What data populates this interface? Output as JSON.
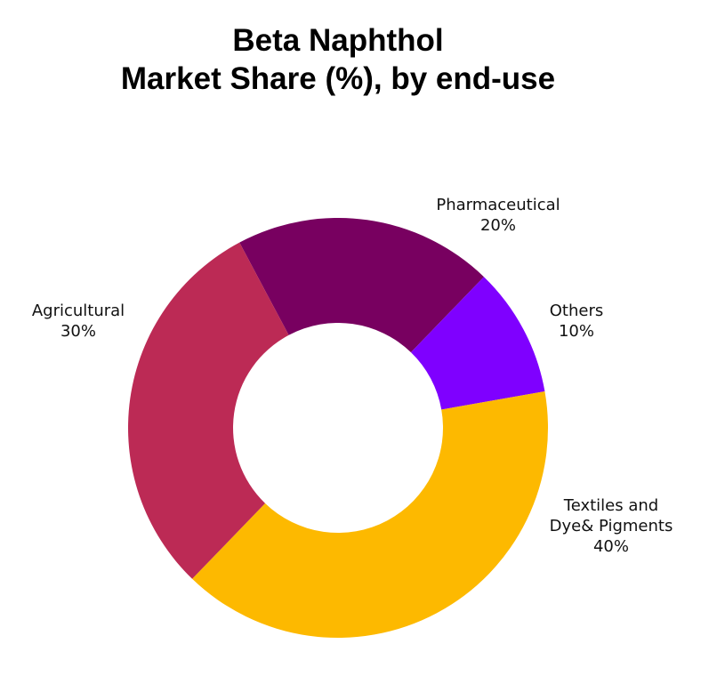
{
  "title": {
    "line1": "Beta Naphthol",
    "line2": "Market Share (%), by end-use"
  },
  "chart_data": {
    "type": "pie",
    "variant": "donut",
    "title": "Beta Naphthol Market Share (%), by end-use",
    "categories": [
      "Pharmaceutical",
      "Others",
      "Textiles and Dye& Pigments",
      "Agricultural"
    ],
    "values": [
      20,
      10,
      40,
      30
    ],
    "unit": "%",
    "colors": [
      "#780060",
      "#7F00FF",
      "#FDB900",
      "#BC2A55"
    ],
    "legend": "none (direct labels)"
  },
  "labels": {
    "pharmaceutical": {
      "name": "Pharmaceutical",
      "value": "20%"
    },
    "others": {
      "name": "Others",
      "value": "10%"
    },
    "textiles_line1": "Textiles and",
    "textiles_line2": "Dye& Pigments",
    "textiles_value": "40%",
    "agricultural": {
      "name": "Agricultural",
      "value": "30%"
    }
  }
}
